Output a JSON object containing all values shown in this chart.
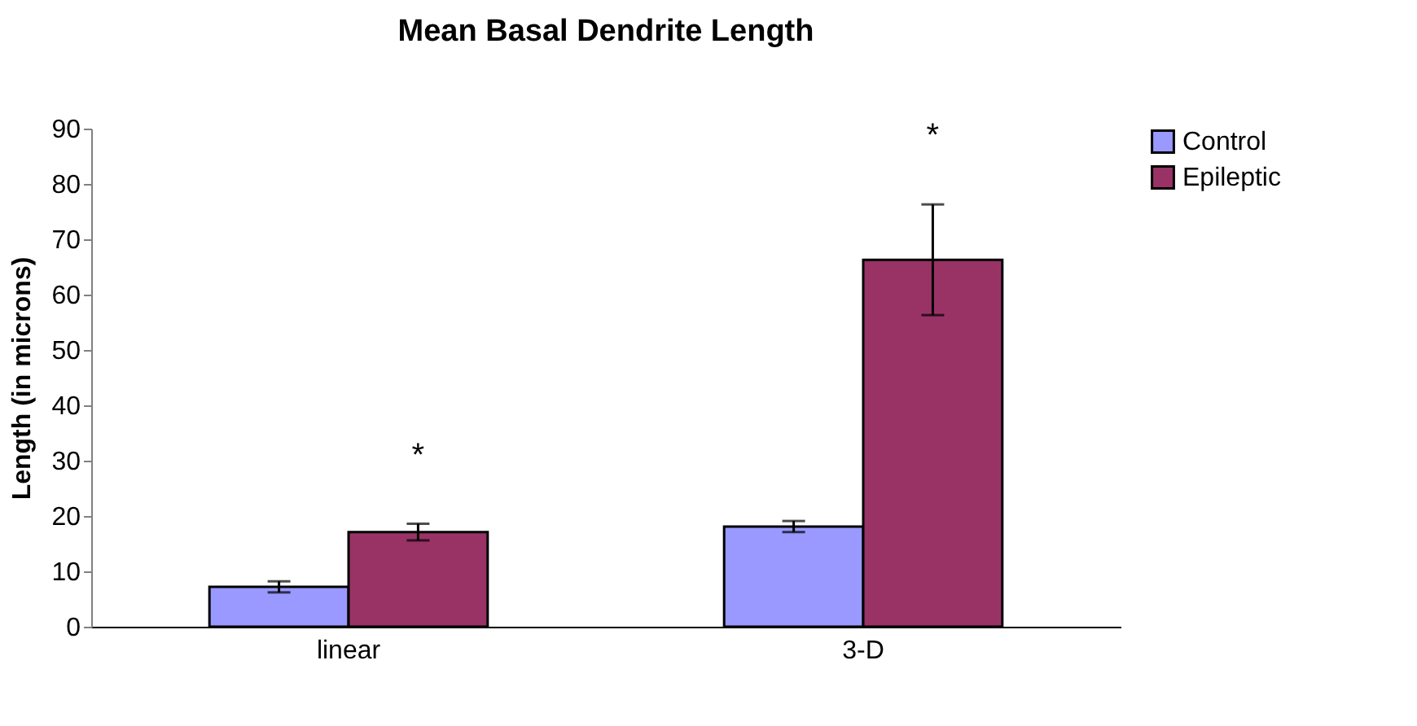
{
  "chart_data": {
    "type": "bar",
    "title": "Mean Basal Dendrite Length",
    "ylabel": "Length (in microns)",
    "categories": [
      "linear",
      "3-D"
    ],
    "series": [
      {
        "name": "Control",
        "color": "#9999ff",
        "values": [
          7.2,
          18.1
        ],
        "errors": [
          1,
          1
        ]
      },
      {
        "name": "Epileptic",
        "color": "#993366",
        "values": [
          17.1,
          66.3
        ],
        "errors": [
          1.5,
          10
        ]
      }
    ],
    "ylim": [
      0,
      90
    ],
    "yticks": [
      0,
      10,
      20,
      30,
      40,
      50,
      60,
      70,
      80,
      90
    ],
    "grid": false,
    "legend": "right",
    "annotations": [
      "*",
      "*"
    ]
  }
}
